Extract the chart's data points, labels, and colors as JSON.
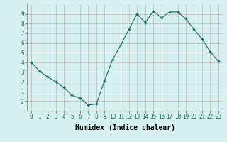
{
  "x": [
    0,
    1,
    2,
    3,
    4,
    5,
    6,
    7,
    8,
    9,
    10,
    11,
    12,
    13,
    14,
    15,
    16,
    17,
    18,
    19,
    20,
    21,
    22,
    23
  ],
  "y": [
    4.0,
    3.1,
    2.5,
    2.0,
    1.4,
    0.6,
    0.3,
    -0.4,
    -0.3,
    2.1,
    4.3,
    5.8,
    7.4,
    9.0,
    8.1,
    9.3,
    8.6,
    9.2,
    9.2,
    8.5,
    7.4,
    6.4,
    5.1,
    4.1
  ],
  "line_color": "#1a6b5a",
  "marker": "+",
  "marker_size": 3.5,
  "bg_color": "#d6f0f0",
  "grid_color": "#c0b8b8",
  "xlabel": "Humidex (Indice chaleur)",
  "ylim": [
    -1,
    10
  ],
  "xlim": [
    -0.5,
    23.5
  ],
  "yticks": [
    0,
    1,
    2,
    3,
    4,
    5,
    6,
    7,
    8,
    9
  ],
  "ytick_labels": [
    "-0",
    "1",
    "2",
    "3",
    "4",
    "5",
    "6",
    "7",
    "8",
    "9"
  ],
  "xticks": [
    0,
    1,
    2,
    3,
    4,
    5,
    6,
    7,
    8,
    9,
    10,
    11,
    12,
    13,
    14,
    15,
    16,
    17,
    18,
    19,
    20,
    21,
    22,
    23
  ],
  "font_size": 5.5,
  "label_font_size": 7.0
}
